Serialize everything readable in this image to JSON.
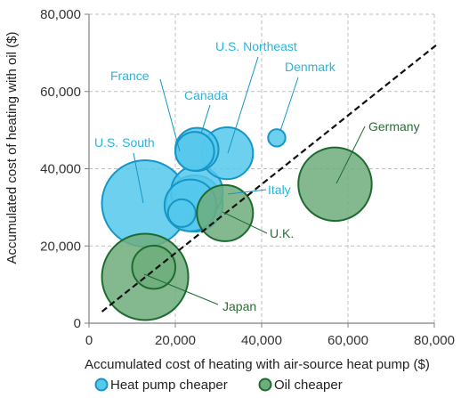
{
  "chart_data": {
    "type": "bubble",
    "xlabel": "Accumulated cost of heating with air-source heat pump ($)",
    "ylabel": "Accumulated cost of heating with oil ($)",
    "xlim": [
      0,
      80000
    ],
    "ylim": [
      0,
      80000
    ],
    "x_ticks": [
      "0",
      "20,000",
      "40,000",
      "60,000",
      "80,000"
    ],
    "y_ticks": [
      "0",
      "20,000",
      "40,000",
      "60,000",
      "80,000"
    ],
    "grid": true,
    "legend_position": "bottom",
    "legend": [
      {
        "label": "Heat pump cheaper",
        "color": "#55C8EC"
      },
      {
        "label": "Oil cheaper",
        "color": "#6FAD7D"
      }
    ],
    "colors": {
      "heat_pump_fill": "#55C8EC",
      "heat_pump_stroke": "#1596C6",
      "oil_fill": "#6FAD7D",
      "oil_stroke": "#1E6B30",
      "heat_pump_label": "#27B5DE",
      "oil_label": "#2F6B3A",
      "parity_line": "#111111"
    },
    "series": [
      {
        "name": "Heat pump cheaper",
        "points": [
          {
            "label": "U.S. South",
            "x": 13000,
            "y": 31000,
            "r": 10000
          },
          {
            "label": "",
            "x": 21500,
            "y": 28500,
            "r": 3200
          },
          {
            "label": "",
            "x": 24500,
            "y": 31000,
            "r": 6500
          },
          {
            "label": "",
            "x": 25000,
            "y": 34000,
            "r": 6000
          },
          {
            "label": "Italy",
            "x": 23500,
            "y": 30500,
            "r": 6000
          },
          {
            "label": "Canada",
            "x": 25000,
            "y": 45000,
            "r": 5000
          },
          {
            "label": "U.S. Northeast",
            "x": 32000,
            "y": 44000,
            "r": 6000
          },
          {
            "label": "Denmark",
            "x": 43500,
            "y": 48000,
            "r": 2000
          },
          {
            "label": "France",
            "x": 24500,
            "y": 44500,
            "r": 4500
          }
        ]
      },
      {
        "name": "Oil cheaper",
        "points": [
          {
            "label": "Japan",
            "x": 13000,
            "y": 12000,
            "r": 10000
          },
          {
            "label": "",
            "x": 15000,
            "y": 14500,
            "r": 5000
          },
          {
            "label": "U.K.",
            "x": 31500,
            "y": 28500,
            "r": 6500
          },
          {
            "label": "Germany",
            "x": 57000,
            "y": 36000,
            "r": 8500
          }
        ]
      }
    ],
    "parity_line": {
      "from": [
        3000,
        3000
      ],
      "to": [
        81000,
        72500
      ]
    }
  }
}
